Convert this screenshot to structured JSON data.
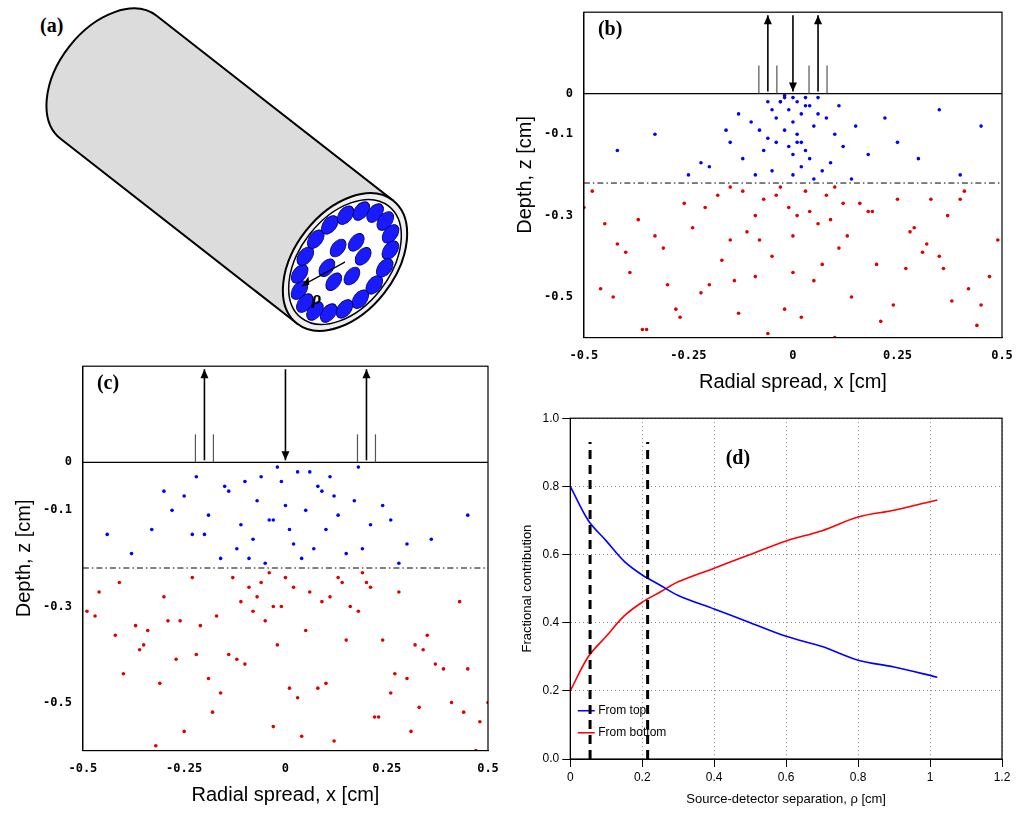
{
  "diagram": {
    "label": "(a)",
    "symbol": "ρ"
  },
  "chart_data": [
    {
      "type": "scatter",
      "title": "(b)",
      "x_label": "Radial spread, x [cm]",
      "y_label": "Depth, z [cm]",
      "xlim": [
        -0.5,
        0.5
      ],
      "ylim": [
        -0.6,
        0.2
      ],
      "xticks": [
        -0.5,
        -0.25,
        0,
        0.25,
        0.5
      ],
      "yticks": [
        -0.5,
        -0.3,
        -0.1,
        0
      ],
      "grid": false,
      "surface": 0,
      "boundary": -0.22,
      "source_x": 0,
      "detector_x": [
        -0.06,
        0.06
      ],
      "series": [
        {
          "color": "#0000ff",
          "x": [
            0,
            0.01,
            -0.02,
            0.03,
            -0.01,
            0.02,
            -0.03,
            0.04,
            -0.04,
            0.0,
            0.05,
            -0.05,
            0.01,
            -0.02,
            0.06,
            -0.06,
            0.02,
            -0.01,
            0.03,
            -0.03,
            0.08,
            -0.08,
            0.0,
            0.04,
            -0.04,
            0.1,
            -0.1,
            0.02,
            -0.07,
            0.07,
            0.12,
            -0.12,
            0.0,
            0.05,
            -0.05,
            0.15,
            -0.15,
            0.09,
            -0.09,
            0.03,
            -0.02,
            0.18,
            -0.2,
            0.25,
            -0.25,
            0.11,
            -0.13,
            0.3,
            -0.33,
            0.4,
            -0.42,
            0.06,
            -0.06,
            0.01,
            0.14,
            -0.16,
            0.22,
            -0.22,
            0.35,
            0.45
          ],
          "values": [
            -0.01,
            -0.02,
            -0.01,
            -0.03,
            -0.04,
            -0.05,
            -0.02,
            -0.03,
            -0.06,
            -0.07,
            -0.08,
            -0.04,
            -0.1,
            -0.09,
            -0.05,
            -0.11,
            -0.12,
            -0.13,
            -0.14,
            -0.02,
            -0.06,
            -0.09,
            -0.15,
            -0.16,
            -0.12,
            -0.1,
            -0.07,
            -0.18,
            -0.14,
            -0.19,
            -0.13,
            -0.16,
            -0.2,
            -0.21,
            -0.19,
            -0.08,
            -0.12,
            -0.17,
            -0.2,
            -0.01,
            -0.005,
            -0.15,
            -0.18,
            -0.12,
            -0.2,
            -0.03,
            -0.05,
            -0.16,
            -0.1,
            -0.2,
            -0.14,
            -0.01,
            -0.02,
            -0.12,
            -0.21,
            -0.09,
            -0.06,
            -0.17,
            -0.04,
            -0.08
          ]
        },
        {
          "color": "#e00000",
          "x": [
            -0.48,
            -0.37,
            -0.26,
            -0.15,
            -0.04,
            0.07,
            0.18,
            0.29,
            0.4,
            0.47,
            -0.43,
            -0.31,
            -0.2,
            -0.09,
            0.02,
            0.13,
            0.24,
            0.35,
            0.44,
            -0.5,
            -0.35,
            -0.22,
            -0.11,
            0.0,
            0.1,
            0.21,
            0.32,
            0.42,
            -0.45,
            -0.28,
            -0.17,
            -0.06,
            0.05,
            0.16,
            0.27,
            0.38,
            0.49,
            -0.4,
            -0.13,
            0.09,
            -0.03,
            0.03,
            -0.07,
            0.08,
            -0.01,
            0.01,
            -0.12,
            0.12,
            -0.18,
            0.19,
            -0.24,
            0.25,
            -0.33,
            0.31,
            -0.39,
            0.37,
            -0.46,
            0.45,
            0.0,
            -0.05,
            0.06,
            -0.09,
            0.11,
            -0.15,
            0.14,
            -0.21,
            0.2,
            -0.27,
            0.28,
            -0.3,
            0.33,
            -0.36,
            0.36,
            -0.42,
            0.41,
            -0.02,
            0.04,
            -0.08,
            0.1,
            -0.14
          ],
          "values": [
            -0.24,
            -0.31,
            -0.27,
            -0.36,
            -0.25,
            -0.42,
            -0.29,
            -0.33,
            -0.26,
            -0.45,
            -0.5,
            -0.38,
            -0.47,
            -0.3,
            -0.55,
            -0.35,
            -0.52,
            -0.4,
            -0.57,
            -0.28,
            -0.58,
            -0.49,
            -0.34,
            -0.44,
            -0.23,
            -0.56,
            -0.37,
            -0.48,
            -0.32,
            -0.53,
            -0.41,
            -0.59,
            -0.46,
            -0.27,
            -0.43,
            -0.51,
            -0.36,
            -0.39,
            -0.54,
            -0.31,
            -0.23,
            -0.24,
            -0.26,
            -0.25,
            -0.28,
            -0.3,
            -0.24,
            -0.27,
            -0.25,
            -0.29,
            -0.33,
            -0.26,
            -0.35,
            -0.39,
            -0.44,
            -0.3,
            -0.48,
            -0.52,
            -0.35,
            -0.4,
            -0.32,
            -0.45,
            -0.38,
            -0.23,
            -0.5,
            -0.28,
            -0.42,
            -0.55,
            -0.34,
            -0.47,
            -0.26,
            -0.58,
            -0.43,
            -0.37,
            -0.24,
            -0.53,
            -0.29,
            -0.36,
            -0.6,
            -0.46
          ]
        }
      ]
    },
    {
      "type": "scatter",
      "title": "(c)",
      "x_label": "Radial spread, x [cm]",
      "y_label": "Depth, z [cm]",
      "xlim": [
        -0.5,
        0.5
      ],
      "ylim": [
        -0.6,
        0.2
      ],
      "xticks": [
        -0.5,
        -0.25,
        0,
        0.25,
        0.5
      ],
      "yticks": [
        -0.5,
        -0.3,
        -0.1,
        0
      ],
      "grid": false,
      "surface": 0,
      "boundary": -0.22,
      "source_x": 0,
      "detector_x": [
        -0.2,
        0.2
      ],
      "series": [
        {
          "color": "#0000ff",
          "x": [
            -0.02,
            0.03,
            -0.06,
            0.08,
            -0.1,
            0.12,
            -0.14,
            0.0,
            0.05,
            -0.04,
            0.17,
            -0.19,
            0.21,
            -0.23,
            0.1,
            -0.08,
            0.02,
            -0.12,
            0.15,
            -0.16,
            0.26,
            -0.28,
            0.3,
            -0.33,
            0.06,
            -0.01,
            0.09,
            -0.07,
            0.13,
            -0.11,
            0.19,
            -0.2,
            0.04,
            -0.05,
            0.24,
            -0.25,
            0.36,
            -0.38,
            0.01,
            -0.03,
            0.11,
            -0.15,
            0.07,
            -0.09,
            0.45,
            -0.44,
            0.18,
            -0.22,
            0.28,
            -0.3
          ],
          "values": [
            -0.01,
            -0.02,
            -0.03,
            -0.05,
            -0.04,
            -0.07,
            -0.06,
            -0.09,
            -0.1,
            -0.12,
            -0.08,
            -0.11,
            -0.13,
            -0.15,
            -0.14,
            -0.16,
            -0.17,
            -0.18,
            -0.19,
            -0.2,
            -0.12,
            -0.1,
            -0.17,
            -0.14,
            -0.02,
            -0.04,
            -0.06,
            -0.08,
            -0.11,
            -0.13,
            -0.18,
            -0.15,
            -0.2,
            -0.21,
            -0.09,
            -0.07,
            -0.16,
            -0.19,
            -0.14,
            -0.12,
            -0.03,
            -0.05,
            -0.18,
            -0.2,
            -0.11,
            -0.15,
            -0.01,
            -0.03,
            -0.21,
            -0.06
          ]
        },
        {
          "color": "#e00000",
          "x": [
            -0.46,
            -0.34,
            -0.23,
            -0.12,
            -0.01,
            0.1,
            0.21,
            0.32,
            0.43,
            0.5,
            -0.4,
            -0.29,
            -0.18,
            -0.07,
            0.04,
            0.15,
            0.26,
            0.37,
            0.48,
            -0.49,
            -0.32,
            -0.19,
            -0.08,
            0.03,
            0.14,
            0.23,
            0.34,
            0.45,
            -0.42,
            -0.25,
            -0.14,
            -0.03,
            0.08,
            0.19,
            0.3,
            0.41,
            -0.37,
            -0.1,
            0.12,
            -0.05,
            0.0,
            0.02,
            -0.04,
            0.06,
            -0.06,
            0.09,
            -0.09,
            0.11,
            -0.13,
            0.16,
            -0.17,
            0.2,
            -0.21,
            0.24,
            -0.27,
            0.28,
            -0.31,
            0.33,
            -0.35,
            0.39,
            -0.03,
            0.05,
            -0.11,
            0.13,
            -0.16,
            0.18,
            -0.22,
            0.22,
            -0.26,
            0.27,
            -0.3,
            0.31,
            -0.36,
            0.35,
            -0.41,
            0.44,
            -0.47,
            0.47,
            0.01,
            -0.02
          ],
          "values": [
            -0.27,
            -0.35,
            -0.24,
            -0.41,
            -0.3,
            -0.46,
            -0.26,
            -0.38,
            -0.29,
            -0.5,
            -0.44,
            -0.33,
            -0.52,
            -0.28,
            -0.57,
            -0.37,
            -0.48,
            -0.42,
            -0.54,
            -0.31,
            -0.59,
            -0.45,
            -0.31,
            -0.49,
            -0.25,
            -0.53,
            -0.39,
            -0.43,
            -0.36,
            -0.56,
            -0.4,
            -0.55,
            -0.47,
            -0.23,
            -0.45,
            -0.5,
            -0.34,
            -0.42,
            -0.58,
            -0.33,
            -0.24,
            -0.26,
            -0.23,
            -0.27,
            -0.25,
            -0.29,
            -0.26,
            -0.28,
            -0.24,
            -0.3,
            -0.32,
            -0.25,
            -0.34,
            -0.37,
            -0.41,
            -0.27,
            -0.46,
            -0.51,
            -0.38,
            -0.43,
            -0.3,
            -0.35,
            -0.29,
            -0.24,
            -0.48,
            -0.31,
            -0.4,
            -0.53,
            -0.33,
            -0.44,
            -0.28,
            -0.56,
            -0.39,
            -0.36,
            -0.25,
            -0.52,
            -0.32,
            -0.6,
            -0.47,
            -0.38
          ]
        }
      ]
    },
    {
      "type": "line",
      "title": "(d)",
      "x_label": "Source-detector separation, ρ [cm]",
      "y_label": "Fractional contribution",
      "xlim": [
        0,
        1.2
      ],
      "ylim": [
        0,
        1
      ],
      "xticks": [
        0,
        0.2,
        0.4,
        0.6,
        0.8,
        1,
        1.2
      ],
      "yticks": [
        {
          "value": 0,
          "label": "0.0"
        },
        0.2,
        0.4,
        0.6,
        0.8,
        {
          "value": 1,
          "label": "1.0"
        }
      ],
      "grid": true,
      "legend": "upper right",
      "vlines": [
        0.055,
        0.215
      ],
      "x": [
        0,
        0.05,
        0.1,
        0.15,
        0.2,
        0.25,
        0.3,
        0.4,
        0.5,
        0.6,
        0.7,
        0.8,
        0.9,
        1.02
      ],
      "series": [
        {
          "name": "From top",
          "color": "#0000ff",
          "values": [
            0.8,
            0.7,
            0.64,
            0.58,
            0.54,
            0.51,
            0.48,
            0.44,
            0.4,
            0.36,
            0.33,
            0.29,
            0.27,
            0.24
          ]
        },
        {
          "name": "From bottom",
          "color": "#ff0000",
          "values": [
            0.2,
            0.3,
            0.36,
            0.42,
            0.46,
            0.49,
            0.52,
            0.56,
            0.6,
            0.64,
            0.67,
            0.71,
            0.73,
            0.76
          ]
        }
      ]
    }
  ]
}
